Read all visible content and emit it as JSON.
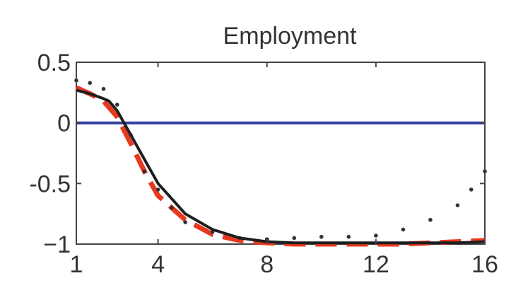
{
  "chart_data": {
    "type": "line",
    "title": "Employment",
    "xlabel": "",
    "ylabel": "",
    "xlim": [
      1,
      16
    ],
    "ylim": [
      -1,
      0.5
    ],
    "xticks": [
      1,
      4,
      8,
      12,
      16
    ],
    "yticks": [
      0.5,
      0,
      -0.5,
      -1
    ],
    "xtick_labels": [
      "1",
      "4",
      "8",
      "12",
      "16"
    ],
    "ytick_labels": [
      "0.5",
      "0",
      "-0.5",
      "−1"
    ],
    "grid": false,
    "series": [
      {
        "style": "solid",
        "color": "#1e1e1e",
        "x": [
          1,
          1.5,
          2,
          2.2,
          2.5,
          3,
          3.5,
          4,
          5,
          6,
          7,
          8,
          9,
          10,
          11,
          12,
          13,
          14,
          15,
          16
        ],
        "y": [
          0.27,
          0.24,
          0.2,
          0.18,
          0.1,
          -0.1,
          -0.3,
          -0.5,
          -0.75,
          -0.88,
          -0.95,
          -0.98,
          -0.99,
          -0.99,
          -0.99,
          -0.99,
          -0.99,
          -0.99,
          -0.99,
          -0.98
        ]
      },
      {
        "style": "dashed",
        "color": "#e8381e",
        "x": [
          1,
          1.5,
          2,
          2.5,
          3,
          3.5,
          4,
          5,
          6,
          7,
          8,
          9,
          10,
          11,
          12,
          13,
          14,
          15,
          16
        ],
        "y": [
          0.29,
          0.24,
          0.18,
          0.05,
          -0.17,
          -0.4,
          -0.6,
          -0.8,
          -0.92,
          -0.97,
          -0.99,
          -1.0,
          -1.0,
          -1.0,
          -1.0,
          -1.0,
          -0.99,
          -0.98,
          -0.97
        ]
      },
      {
        "style": "dotted",
        "color": "#333333",
        "x": [
          1,
          1.5,
          2,
          2.5,
          3,
          3.5,
          4,
          4.5,
          5,
          6,
          7,
          8,
          9,
          10,
          11,
          12,
          13,
          14,
          15,
          15.5,
          16
        ],
        "y": [
          0.35,
          0.33,
          0.28,
          0.15,
          -0.1,
          -0.4,
          -0.55,
          -0.7,
          -0.82,
          -0.9,
          -0.95,
          -0.96,
          -0.95,
          -0.94,
          -0.94,
          -0.93,
          -0.88,
          -0.8,
          -0.68,
          -0.55,
          -0.4
        ]
      },
      {
        "style": "solid",
        "color": "#3341a3",
        "x": [
          1,
          16
        ],
        "y": [
          0,
          0
        ]
      }
    ]
  }
}
